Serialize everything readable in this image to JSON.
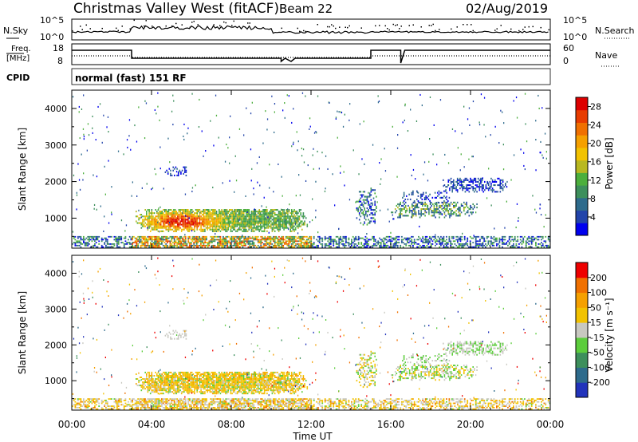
{
  "header": {
    "station": "Christmas Valley West (fitACF)",
    "beam": "Beam 22",
    "date": "02/Aug/2019"
  },
  "noise_panel": {
    "left_label": "N.Sky",
    "right_label": "N.Search",
    "ticks_left": [
      "10^5",
      "10^0"
    ],
    "ticks_right": [
      "10^5",
      "10^0"
    ]
  },
  "freq_panel": {
    "left_label_1": "Freq.",
    "left_label_2": "[MHz]",
    "right_label": "Nave",
    "ticks_left": [
      "18",
      "8"
    ],
    "ticks_right": [
      "60",
      "0"
    ]
  },
  "cpid": {
    "label": "CPID",
    "mode": "normal (fast) 151 RF"
  },
  "chart_data": [
    {
      "type": "heatmap",
      "title": "",
      "xlabel": "Time UT",
      "ylabel": "Slant Range [km]",
      "x_ticks": [
        "00:00",
        "04:00",
        "08:00",
        "12:00",
        "16:00",
        "20:00",
        "00:00"
      ],
      "xlim": [
        0,
        24
      ],
      "y_ticks": [
        "1000",
        "2000",
        "3000",
        "4000"
      ],
      "ylim": [
        180,
        4500
      ],
      "colorbar": {
        "label": "Power [dB]",
        "ticks": [
          "4",
          "8",
          "12",
          "16",
          "20",
          "24",
          "28"
        ],
        "range": [
          0,
          30
        ],
        "colors": [
          "#0000ee",
          "#2244aa",
          "#2e6b8c",
          "#3d8f5c",
          "#4caf3c",
          "#b8b820",
          "#f2c200",
          "#f5a000",
          "#f07000",
          "#e83c00",
          "#dd0000"
        ]
      }
    },
    {
      "type": "heatmap",
      "title": "",
      "xlabel": "Time UT",
      "ylabel": "Slant Range [km]",
      "x_ticks": [
        "00:00",
        "04:00",
        "08:00",
        "12:00",
        "16:00",
        "20:00",
        "00:00"
      ],
      "xlim": [
        0,
        24
      ],
      "y_ticks": [
        "1000",
        "2000",
        "3000",
        "4000"
      ],
      "ylim": [
        180,
        4500
      ],
      "colorbar": {
        "label": "Velocity [m s⁻¹]",
        "ticks": [
          "200",
          "100",
          "50",
          "15",
          "-15",
          "-50",
          "-100",
          "-200"
        ],
        "range": [
          -250,
          250
        ],
        "colors": [
          "#2233bb",
          "#2e6b8c",
          "#3d8f5c",
          "#5ccd3c",
          "#c8c8c0",
          "#f2c200",
          "#f5a000",
          "#f07000",
          "#ee0000"
        ]
      }
    }
  ]
}
